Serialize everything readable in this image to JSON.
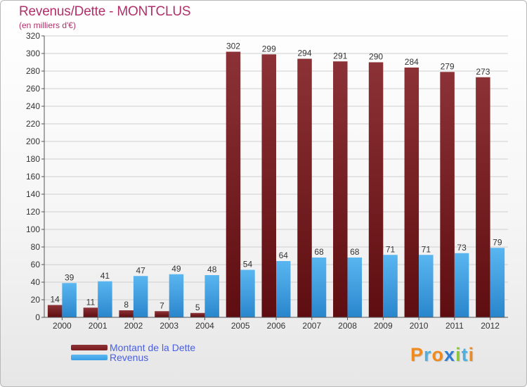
{
  "chart_data": {
    "type": "bar",
    "title": "Revenus/Dette - MONTCLUS",
    "subtitle": "(en milliers d'€)",
    "categories": [
      "2000",
      "2001",
      "2002",
      "2003",
      "2004",
      "2005",
      "2006",
      "2007",
      "2008",
      "2009",
      "2010",
      "2011",
      "2012"
    ],
    "series": [
      {
        "name": "Montant de la Dette",
        "color": "#7a1a1e",
        "values": [
          14,
          11,
          8,
          7,
          5,
          302,
          299,
          294,
          291,
          290,
          284,
          279,
          273
        ]
      },
      {
        "name": "Revenus",
        "color": "#3a9ee6",
        "values": [
          39,
          41,
          47,
          49,
          48,
          54,
          64,
          68,
          68,
          71,
          71,
          73,
          79
        ]
      }
    ],
    "ylim": [
      0,
      320
    ],
    "yticks": [
      0,
      20,
      40,
      60,
      80,
      100,
      120,
      140,
      160,
      180,
      200,
      220,
      240,
      260,
      280,
      300,
      320
    ],
    "grid": true,
    "legend_position": "bottom-left"
  },
  "logo": {
    "letters": [
      "P",
      "r",
      "o",
      "x",
      "i",
      "t",
      "i"
    ],
    "colors": [
      "#f08a1c",
      "#4fb0e0",
      "#f08a1c",
      "#2c7fd1",
      "#8cc63f",
      "#4fb0e0",
      "#f08a1c"
    ]
  }
}
